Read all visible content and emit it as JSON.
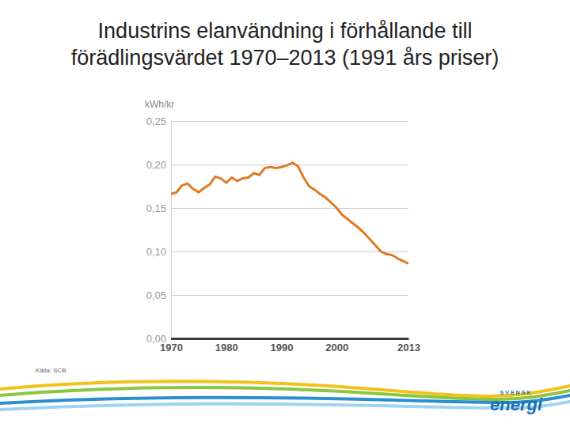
{
  "chart_data": {
    "type": "line",
    "title": "Industrins elanvändning i förhållande till förädlingsvärdet 1970–2013 (1991 års priser)",
    "y_label": "kWh/kr",
    "source": "Källa: SCB",
    "logo": {
      "small": "SVENSK",
      "large": "energi"
    },
    "x": [
      1970,
      1971,
      1972,
      1973,
      1974,
      1975,
      1976,
      1977,
      1978,
      1979,
      1980,
      1981,
      1982,
      1983,
      1984,
      1985,
      1986,
      1987,
      1988,
      1989,
      1990,
      1991,
      1992,
      1993,
      1994,
      1995,
      1996,
      1997,
      1998,
      1999,
      2000,
      2001,
      2002,
      2003,
      2004,
      2005,
      2006,
      2007,
      2008,
      2009,
      2010,
      2011,
      2012,
      2013
    ],
    "values": [
      0.166,
      0.168,
      0.176,
      0.178,
      0.172,
      0.168,
      0.173,
      0.177,
      0.186,
      0.184,
      0.179,
      0.185,
      0.181,
      0.184,
      0.185,
      0.19,
      0.188,
      0.196,
      0.197,
      0.196,
      0.197,
      0.199,
      0.202,
      0.198,
      0.185,
      0.175,
      0.171,
      0.166,
      0.162,
      0.156,
      0.15,
      0.142,
      0.137,
      0.132,
      0.127,
      0.121,
      0.114,
      0.107,
      0.1,
      0.097,
      0.096,
      0.092,
      0.089,
      0.086
    ],
    "color": "#e07b24",
    "xlim": [
      1970,
      2013
    ],
    "xticks": [
      1970,
      1980,
      1990,
      2000,
      2013
    ],
    "ylim": [
      0,
      0.25
    ],
    "yticks": [
      {
        "value": 0,
        "label": "0,00"
      },
      {
        "value": 0.05,
        "label": "0,05"
      },
      {
        "value": 0.1,
        "label": "0,10"
      },
      {
        "value": 0.15,
        "label": "0,15"
      },
      {
        "value": 0.2,
        "label": "0,20"
      },
      {
        "value": 0.25,
        "label": "0,25"
      }
    ],
    "grid": true
  }
}
